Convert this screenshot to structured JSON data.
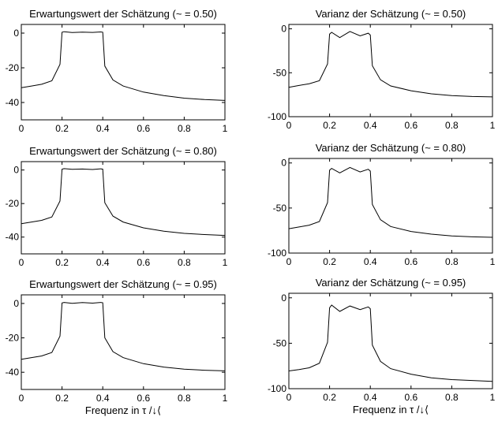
{
  "figure": {
    "xlabel": "Frequenz in τ /↓⟨"
  },
  "chart_data": [
    {
      "type": "line",
      "title": "Erwartungswert der Schätzung (~ = 0.50)",
      "xlabel": "",
      "ylabel": "",
      "xlim": [
        0,
        1
      ],
      "ylim": [
        -50,
        5
      ],
      "xticks": [
        "0",
        "0.2",
        "0.4",
        "0.6",
        "0.8",
        "1"
      ],
      "yticks": [
        "0",
        "-20",
        "-40"
      ],
      "x": [
        0,
        0.05,
        0.1,
        0.15,
        0.19,
        0.2,
        0.21,
        0.25,
        0.3,
        0.35,
        0.39,
        0.4,
        0.41,
        0.45,
        0.5,
        0.6,
        0.7,
        0.8,
        0.9,
        1
      ],
      "y": [
        -31.5,
        -30.5,
        -29.5,
        -27.5,
        -18,
        0.5,
        0.8,
        0.3,
        0.6,
        0.4,
        0.7,
        0.5,
        -19,
        -27,
        -30.5,
        -34,
        -36,
        -37.5,
        -38.3,
        -38.8
      ]
    },
    {
      "type": "line",
      "title": "Varianz der Schätzung (~ = 0.50)",
      "xlabel": "",
      "ylabel": "",
      "xlim": [
        0,
        1
      ],
      "ylim": [
        -100,
        5
      ],
      "xticks": [
        "0",
        "0.2",
        "0.4",
        "0.6",
        "0.8",
        "1"
      ],
      "yticks": [
        "0",
        "-50",
        "-100"
      ],
      "x": [
        0,
        0.05,
        0.1,
        0.15,
        0.19,
        0.2,
        0.21,
        0.25,
        0.3,
        0.35,
        0.39,
        0.4,
        0.41,
        0.45,
        0.5,
        0.6,
        0.7,
        0.8,
        0.9,
        1
      ],
      "y": [
        -66.5,
        -64.5,
        -62.5,
        -59,
        -40,
        -6,
        -4,
        -10,
        -3,
        -8,
        -5,
        -7,
        -42,
        -58,
        -65,
        -70.5,
        -74,
        -76,
        -77,
        -77.5
      ]
    },
    {
      "type": "line",
      "title": "Erwartungswert der Schätzung (~ = 0.80)",
      "xlabel": "",
      "ylabel": "",
      "xlim": [
        0,
        1
      ],
      "ylim": [
        -50,
        5
      ],
      "xticks": [
        "0",
        "0.2",
        "0.4",
        "0.6",
        "0.8",
        "1"
      ],
      "yticks": [
        "0",
        "-20",
        "-40"
      ],
      "x": [
        0,
        0.05,
        0.1,
        0.15,
        0.19,
        0.2,
        0.21,
        0.25,
        0.3,
        0.35,
        0.39,
        0.4,
        0.41,
        0.45,
        0.5,
        0.6,
        0.7,
        0.8,
        0.9,
        1
      ],
      "y": [
        -32,
        -31,
        -30,
        -28,
        -18.5,
        0.5,
        0.8,
        0.4,
        0.6,
        0.3,
        0.7,
        0.5,
        -19.5,
        -27.5,
        -31,
        -34.5,
        -36.5,
        -37.8,
        -38.5,
        -39
      ]
    },
    {
      "type": "line",
      "title": "Varianz der Schätzung (~ = 0.80)",
      "xlabel": "",
      "ylabel": "",
      "xlim": [
        0,
        1
      ],
      "ylim": [
        -100,
        5
      ],
      "xticks": [
        "0",
        "0.2",
        "0.4",
        "0.6",
        "0.8",
        "1"
      ],
      "yticks": [
        "0",
        "-50",
        "-100"
      ],
      "x": [
        0,
        0.05,
        0.1,
        0.15,
        0.19,
        0.2,
        0.21,
        0.25,
        0.3,
        0.35,
        0.39,
        0.4,
        0.41,
        0.45,
        0.5,
        0.6,
        0.7,
        0.8,
        0.9,
        1
      ],
      "y": [
        -73,
        -71,
        -69,
        -65,
        -44,
        -8,
        -6,
        -11,
        -5,
        -10,
        -7,
        -9,
        -46,
        -63,
        -70.5,
        -76,
        -79,
        -81,
        -82,
        -82.5
      ]
    },
    {
      "type": "line",
      "title": "Erwartungswert der Schätzung (~ = 0.95)",
      "xlabel": "Frequenz in τ /↓⟨",
      "ylabel": "",
      "xlim": [
        0,
        1
      ],
      "ylim": [
        -50,
        5
      ],
      "xticks": [
        "0",
        "0.2",
        "0.4",
        "0.6",
        "0.8",
        "1"
      ],
      "yticks": [
        "0",
        "-20",
        "-40"
      ],
      "x": [
        0,
        0.05,
        0.1,
        0.15,
        0.19,
        0.2,
        0.21,
        0.25,
        0.3,
        0.35,
        0.39,
        0.4,
        0.41,
        0.45,
        0.5,
        0.6,
        0.7,
        0.8,
        0.9,
        1
      ],
      "y": [
        -32.5,
        -31.5,
        -30.5,
        -28.5,
        -19,
        0.3,
        0.6,
        0.1,
        0.5,
        0.2,
        0.6,
        0.4,
        -20,
        -28,
        -31.5,
        -35,
        -37,
        -38.2,
        -38.8,
        -39.2
      ]
    },
    {
      "type": "line",
      "title": "Varianz der Schätzung (~ = 0.95)",
      "xlabel": "Frequenz in τ /↓⟨",
      "ylabel": "",
      "xlim": [
        0,
        1
      ],
      "ylim": [
        -100,
        5
      ],
      "xticks": [
        "0",
        "0.2",
        "0.4",
        "0.6",
        "0.8",
        "1"
      ],
      "yticks": [
        "0",
        "-50",
        "-100"
      ],
      "x": [
        0,
        0.05,
        0.1,
        0.15,
        0.19,
        0.2,
        0.21,
        0.25,
        0.3,
        0.35,
        0.39,
        0.4,
        0.41,
        0.45,
        0.5,
        0.6,
        0.7,
        0.8,
        0.9,
        1
      ],
      "y": [
        -80.5,
        -79,
        -77,
        -72,
        -49,
        -11,
        -8,
        -15,
        -9,
        -13,
        -10,
        -12,
        -52,
        -70,
        -78,
        -84,
        -88,
        -90,
        -91,
        -92
      ]
    }
  ]
}
